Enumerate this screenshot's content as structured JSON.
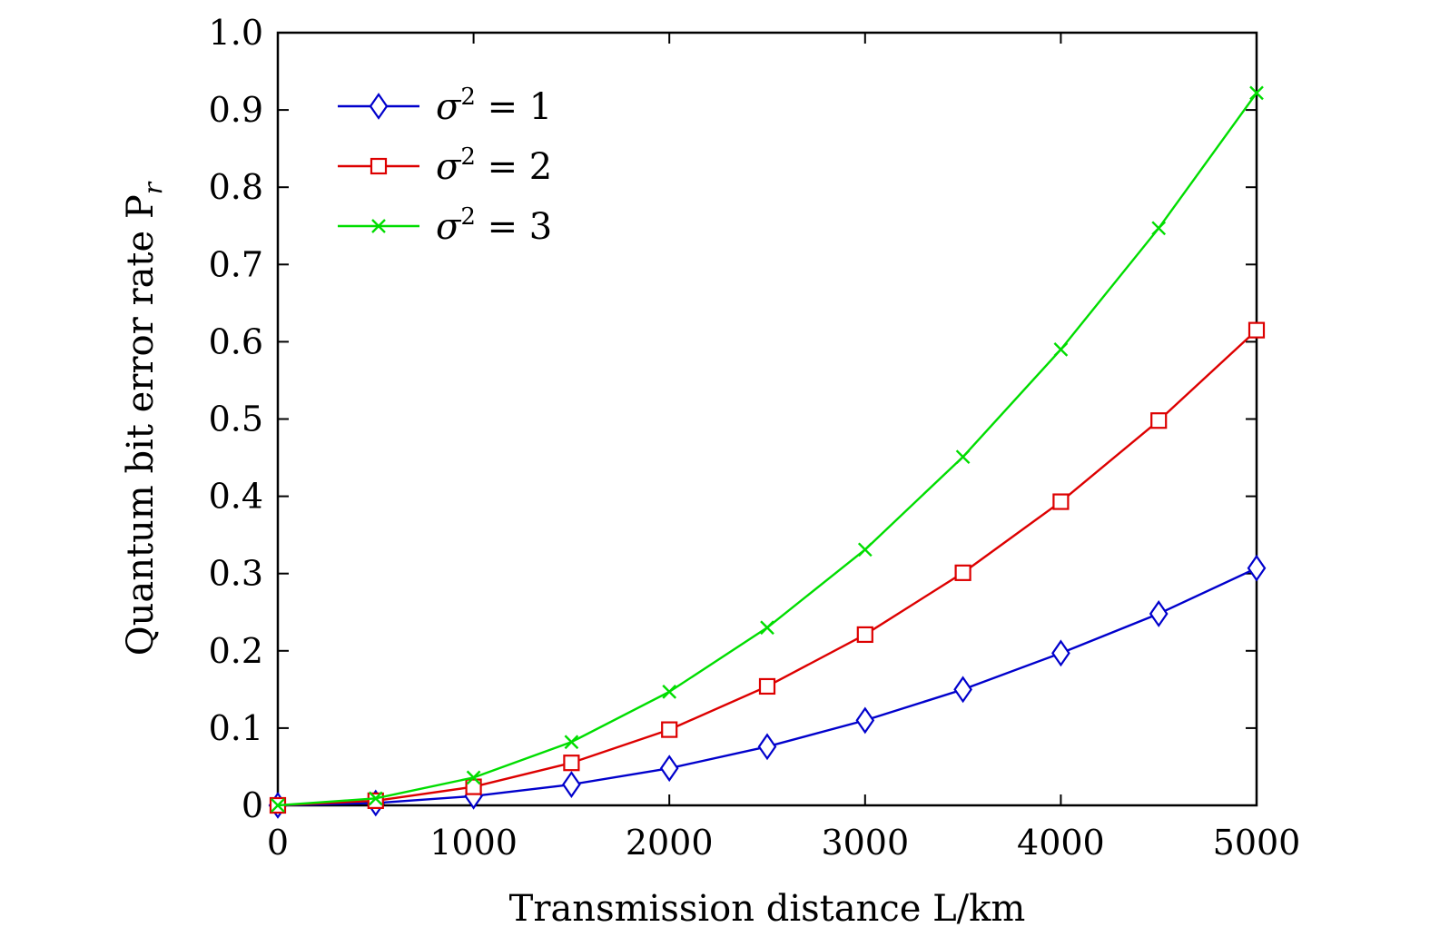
{
  "chart_data": {
    "type": "line",
    "xlabel": "Transmission distance L/km",
    "ylabel": "Quantum bit error rate P",
    "ylabel_sub": "r",
    "xlim": [
      0,
      5000
    ],
    "ylim": [
      0,
      1.0
    ],
    "x_ticks": [
      "0",
      "1000",
      "2000",
      "3000",
      "4000",
      "5000"
    ],
    "y_ticks": [
      "0",
      "0.1",
      "0.2",
      "0.3",
      "0.4",
      "0.5",
      "0.6",
      "0.7",
      "0.8",
      "0.9",
      "1.0"
    ],
    "grid": false,
    "legend_position": "top-left",
    "x": [
      0,
      500,
      1000,
      1500,
      2000,
      2500,
      3000,
      3500,
      4000,
      4500,
      5000
    ],
    "series": [
      {
        "name": "σ2 = 1",
        "label_base": "σ",
        "label_sup": "2",
        "label_rest": " = 1",
        "color": "#0000cc",
        "marker": "diamond",
        "values": [
          0,
          0.003,
          0.012,
          0.027,
          0.048,
          0.076,
          0.11,
          0.15,
          0.197,
          0.248,
          0.307
        ]
      },
      {
        "name": "σ2 = 2",
        "label_base": "σ",
        "label_sup": "2",
        "label_rest": " = 2",
        "color": "#dd0000",
        "marker": "square",
        "values": [
          0,
          0.006,
          0.024,
          0.055,
          0.098,
          0.154,
          0.221,
          0.301,
          0.393,
          0.498,
          0.615
        ]
      },
      {
        "name": "σ2 = 3",
        "label_base": "σ",
        "label_sup": "2",
        "label_rest": " = 3",
        "color": "#00dd00",
        "marker": "x",
        "values": [
          0,
          0.009,
          0.036,
          0.082,
          0.147,
          0.23,
          0.331,
          0.451,
          0.59,
          0.747,
          0.922
        ]
      }
    ]
  }
}
